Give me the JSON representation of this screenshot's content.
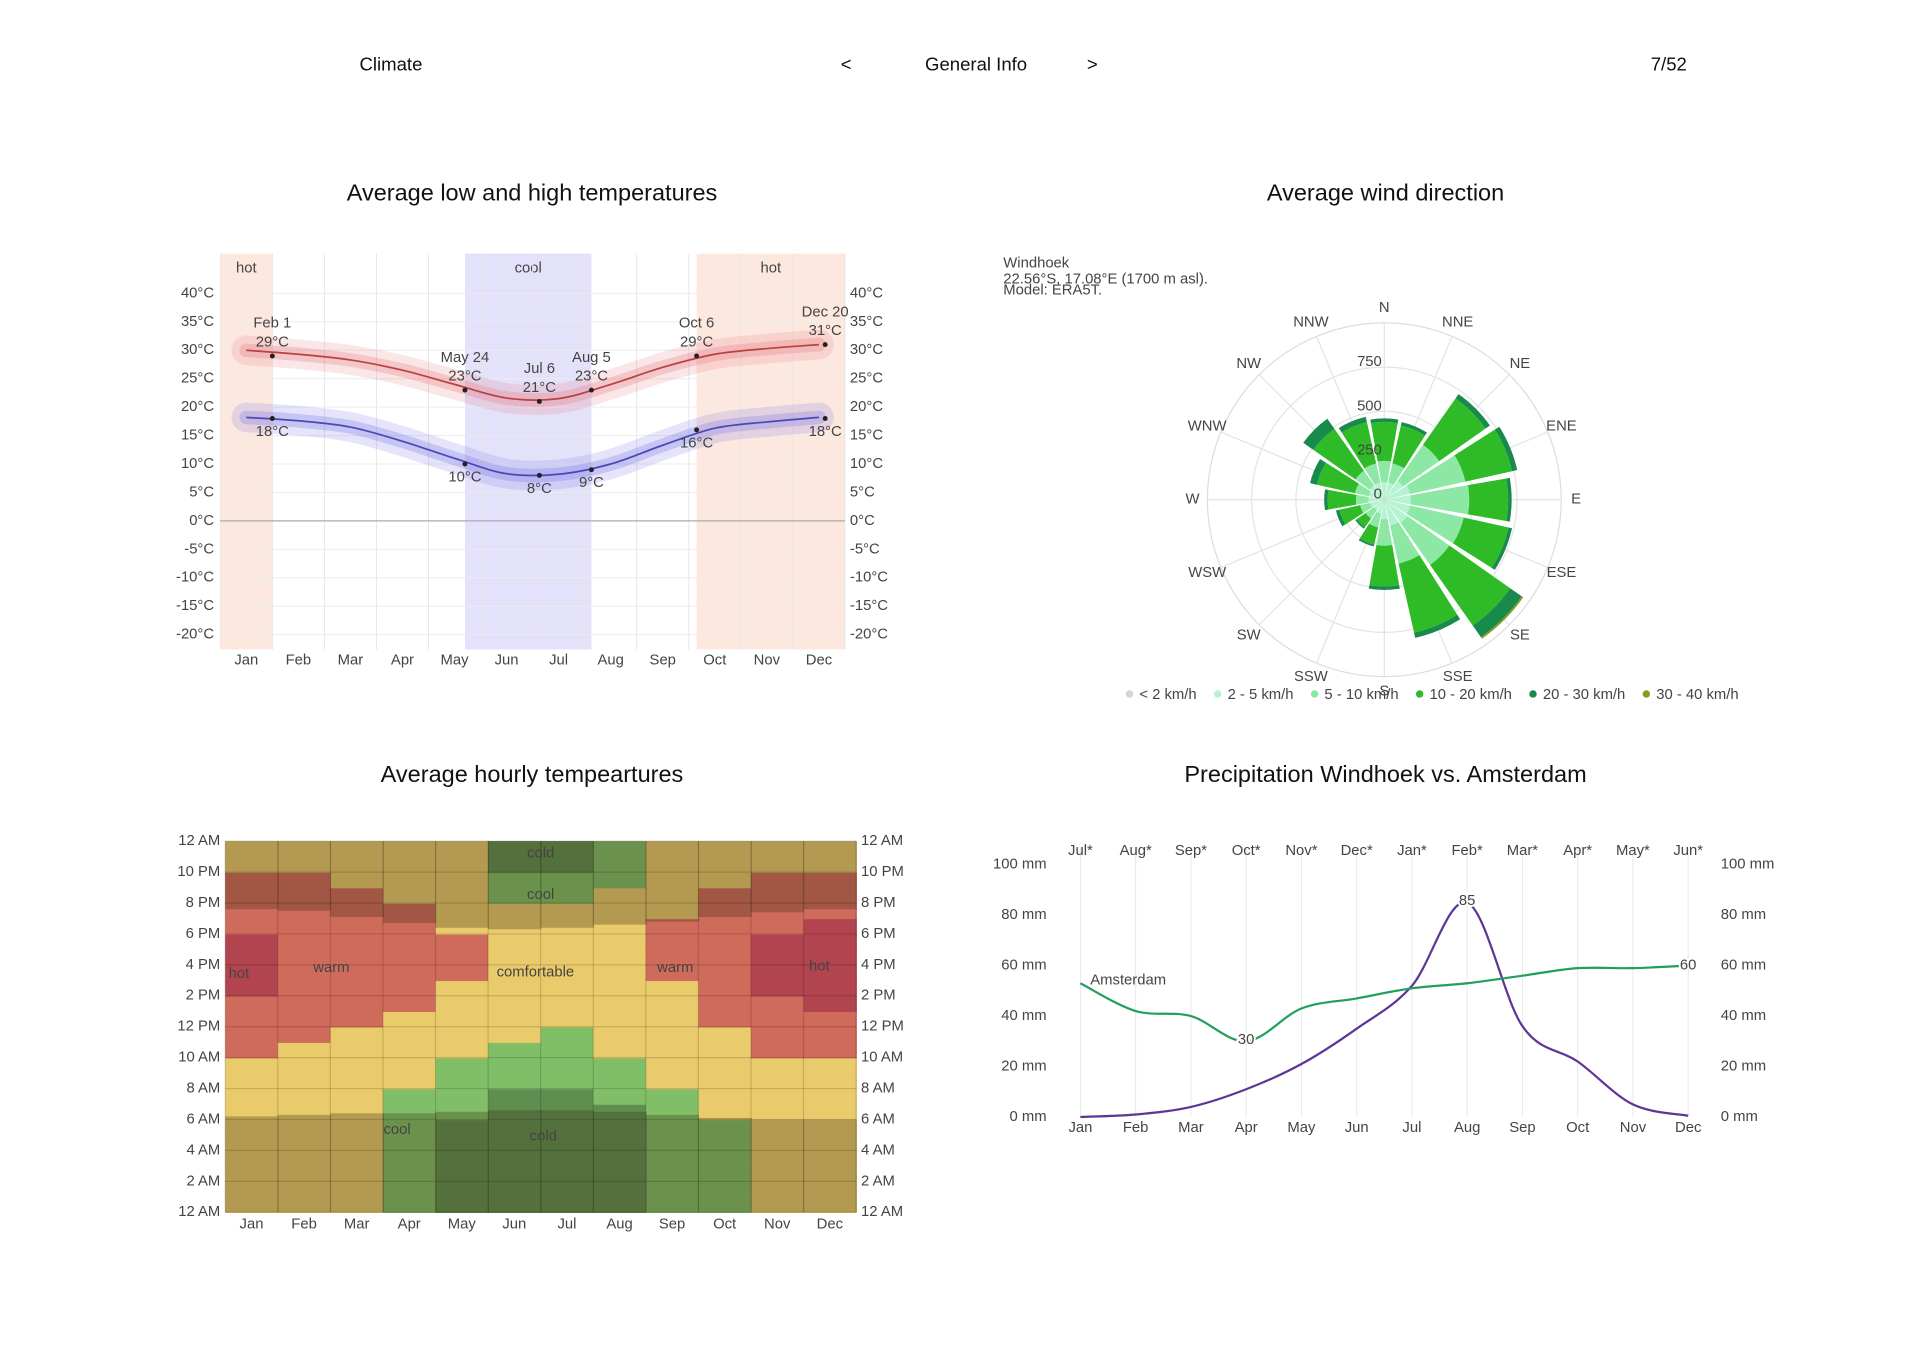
{
  "header": {
    "section": "Climate",
    "prev": "<",
    "page_title": "General Info",
    "next": ">",
    "page_number": "7/52"
  },
  "chart_data": [
    {
      "type": "line",
      "title": "Average low and high temperatures",
      "categories": [
        "Jan",
        "Feb",
        "Mar",
        "Apr",
        "May",
        "Jun",
        "Jul",
        "Aug",
        "Sep",
        "Oct",
        "Nov",
        "Dec"
      ],
      "xlim": [
        0,
        12
      ],
      "ylim": [
        -22.6,
        47
      ],
      "yticks": [
        {
          "value": 40,
          "label": "40°C"
        },
        {
          "value": 35,
          "label": "35°C"
        },
        {
          "value": 30,
          "label": "30°C"
        },
        {
          "value": 25,
          "label": "25°C"
        },
        {
          "value": 20,
          "label": "20°C"
        },
        {
          "value": 15,
          "label": "15°C"
        },
        {
          "value": 10,
          "label": "10°C"
        },
        {
          "value": 5,
          "label": "5°C"
        },
        {
          "value": 0,
          "label": "0°C"
        },
        {
          "value": -5,
          "label": "-5°C"
        },
        {
          "value": -10,
          "label": "-10°C"
        },
        {
          "value": -15,
          "label": "-15°C"
        },
        {
          "value": -20,
          "label": "-20°C"
        }
      ],
      "grid": true,
      "mirror_y": true,
      "seasons": [
        {
          "label": "hot",
          "from": 0,
          "to": 1.0,
          "color": "#fde8df"
        },
        {
          "label": "cool",
          "from": 4.7,
          "to": 7.13,
          "color": "#e4e2fb"
        },
        {
          "label": "hot",
          "from": 9.15,
          "to": 12,
          "color": "#fde8df"
        }
      ],
      "series": [
        {
          "color": "#b8423f",
          "band_color": "#e77b86",
          "values": [
            30,
            29.3,
            28.3,
            26.5,
            24,
            21.6,
            21.5,
            24,
            27,
            29.3,
            30.3,
            31
          ]
        },
        {
          "color": "#4b48b6",
          "band_color": "#7e7ae6",
          "values": [
            18.2,
            17.6,
            16.5,
            14,
            11,
            8.3,
            8.2,
            10,
            13.3,
            16.3,
            17.4,
            18.2
          ]
        }
      ],
      "annotations": [
        {
          "date": "Feb 1",
          "x": 1.0,
          "high": 29,
          "high_label": "29°C",
          "low": 18,
          "low_label": "18°C"
        },
        {
          "date": "May 24",
          "x": 4.7,
          "high": 23,
          "high_label": "23°C",
          "low": 10,
          "low_label": "10°C"
        },
        {
          "date": "Jul 6",
          "x": 6.13,
          "high": 21,
          "high_label": "21°C",
          "low": 8,
          "low_label": "8°C"
        },
        {
          "date": "Aug 5",
          "x": 7.13,
          "high": 23,
          "high_label": "23°C",
          "low": 9,
          "low_label": "9°C"
        },
        {
          "date": "Oct 6",
          "x": 9.15,
          "high": 29,
          "high_label": "29°C",
          "low": 16,
          "low_label": "16°C"
        },
        {
          "date": "Dec 20",
          "x": 11.62,
          "high": 31,
          "high_label": "31°C",
          "low": 18,
          "low_label": "18°C"
        }
      ]
    },
    {
      "type": "windrose",
      "title": "Average wind direction",
      "subtitle": "Windhoek",
      "location": "22.56°S, 17.08°E (1700 m asl).",
      "model": "Model: ERA5T.",
      "directions": [
        "N",
        "NNE",
        "NE",
        "ENE",
        "E",
        "ESE",
        "SE",
        "SSE",
        "S",
        "SSW",
        "SW",
        "WSW",
        "W",
        "WNW",
        "NW",
        "NNW"
      ],
      "rlim": [
        0,
        1000
      ],
      "rticks": [
        0,
        250,
        500,
        750
      ],
      "series": [
        {
          "name": "< 2 km/h",
          "color": "#d4d4d4",
          "values": [
            10,
            10,
            10,
            10,
            10,
            10,
            10,
            10,
            10,
            10,
            10,
            10,
            10,
            10,
            10,
            10
          ]
        },
        {
          "name": "2 - 5 km/h",
          "color": "#b6f3d2",
          "values": [
            90,
            90,
            120,
            140,
            140,
            140,
            150,
            140,
            100,
            70,
            60,
            70,
            80,
            80,
            90,
            90
          ]
        },
        {
          "name": "5 - 10 km/h",
          "color": "#8ce8a4",
          "values": [
            120,
            110,
            250,
            320,
            330,
            310,
            290,
            220,
            150,
            80,
            60,
            60,
            70,
            80,
            100,
            110
          ]
        },
        {
          "name": "10 - 20 km/h",
          "color": "#2fbb27",
          "values": [
            220,
            220,
            320,
            270,
            220,
            260,
            420,
            400,
            230,
            100,
            60,
            120,
            160,
            220,
            290,
            240
          ]
        },
        {
          "name": "20 - 30 km/h",
          "color": "#178a4c",
          "values": [
            20,
            20,
            30,
            30,
            20,
            20,
            80,
            30,
            20,
            10,
            10,
            20,
            20,
            40,
            70,
            30
          ]
        },
        {
          "name": "30 - 40 km/h",
          "color": "#8a9c1c",
          "values": [
            0,
            0,
            0,
            0,
            0,
            0,
            10,
            0,
            0,
            0,
            0,
            0,
            0,
            0,
            0,
            0
          ]
        }
      ]
    },
    {
      "type": "heatmap",
      "title": "Average hourly tempeartures",
      "categories": [
        "Jan",
        "Feb",
        "Mar",
        "Apr",
        "May",
        "Jun",
        "Jul",
        "Aug",
        "Sep",
        "Oct",
        "Nov",
        "Dec"
      ],
      "ylim": [
        0,
        24
      ],
      "yticks": [
        {
          "value": 24,
          "label": "12 AM"
        },
        {
          "value": 22,
          "label": "10 PM"
        },
        {
          "value": 20,
          "label": "8 PM"
        },
        {
          "value": 18,
          "label": "6 PM"
        },
        {
          "value": 16,
          "label": "4 PM"
        },
        {
          "value": 14,
          "label": "2 PM"
        },
        {
          "value": 12,
          "label": "12 PM"
        },
        {
          "value": 10,
          "label": "10 AM"
        },
        {
          "value": 8,
          "label": "8 AM"
        },
        {
          "value": 6,
          "label": "6 AM"
        },
        {
          "value": 4,
          "label": "4 AM"
        },
        {
          "value": 2,
          "label": "2 AM"
        },
        {
          "value": 0,
          "label": "12 AM"
        }
      ],
      "mirror_y": true,
      "color_scale": [
        {
          "max": 13,
          "color": "#5f8f50"
        },
        {
          "max": 18,
          "color": "#80bf68"
        },
        {
          "max": 24,
          "color": "#e9cb6c"
        },
        {
          "max": 29,
          "color": "#cf6b5b"
        },
        {
          "max": 40,
          "color": "#b2444f"
        }
      ],
      "values": [
        [
          20,
          19.5,
          19,
          18.7,
          18.5,
          18.3,
          18.4,
          19.5,
          21,
          23,
          24.5,
          26,
          27.5,
          28.6,
          29.3,
          29.8,
          29.9,
          29.5,
          28.5,
          27,
          25.5,
          24.2,
          22.5,
          21
        ],
        [
          19.5,
          19,
          18.6,
          18.3,
          18.1,
          18,
          18,
          19,
          20.5,
          22,
          23.5,
          25,
          26.5,
          27.5,
          28.3,
          28.7,
          28.8,
          28.5,
          27.8,
          26.8,
          25.5,
          24.3,
          22.8,
          21
        ],
        [
          18.8,
          18.4,
          18.1,
          18,
          18,
          18,
          18.1,
          18.5,
          19.8,
          21.2,
          22.5,
          23.6,
          24.8,
          26,
          27,
          27.6,
          27.8,
          27.4,
          26.6,
          25.4,
          24.2,
          23.2,
          21.5,
          20
        ],
        [
          17,
          16.5,
          16,
          15.6,
          15.3,
          15,
          15.1,
          16.8,
          18.5,
          20,
          21.5,
          22.8,
          23.8,
          24.8,
          25.6,
          26.1,
          26.2,
          25.8,
          25,
          24.2,
          23.5,
          21.5,
          19.5,
          18.2
        ],
        [
          12.8,
          12.2,
          11.6,
          11.1,
          10.7,
          10.4,
          13.2,
          14.5,
          16.5,
          17.8,
          19.5,
          21,
          22.3,
          23.2,
          23.8,
          24.2,
          24.3,
          24.1,
          23.5,
          22.3,
          21,
          20,
          19,
          18.2
        ],
        [
          12,
          11.3,
          10.7,
          10.1,
          9.6,
          9.2,
          9,
          10.5,
          13.5,
          16,
          17.5,
          19,
          20.5,
          21.6,
          22.2,
          22.5,
          22.4,
          21.6,
          20.2,
          18.5,
          17,
          14.5,
          12.8,
          12.4
        ],
        [
          11.8,
          11,
          10.3,
          9.7,
          9.2,
          8.8,
          8.6,
          9.8,
          13.2,
          15.2,
          16.8,
          17.9,
          19.3,
          20.5,
          21.4,
          21.8,
          21.7,
          21,
          19.8,
          18.3,
          16.8,
          14.2,
          12.7,
          12.2
        ],
        [
          12.7,
          12,
          11.3,
          10.7,
          10.2,
          9.8,
          9.7,
          13.3,
          15.5,
          17.3,
          19.2,
          21,
          22.4,
          23.3,
          23.8,
          23.9,
          23.6,
          22.8,
          21.4,
          19.8,
          18.4,
          17,
          15.5,
          14.2
        ],
        [
          16.2,
          15.6,
          15,
          14.5,
          14.1,
          13.8,
          13.7,
          15.8,
          18.5,
          20.5,
          22,
          23,
          23.6,
          23.9,
          23.95,
          24.4,
          24.6,
          24.5,
          24.1,
          23.5,
          22.4,
          20.8,
          19.2,
          18.1
        ],
        [
          17.6,
          17.2,
          16.8,
          16.4,
          16.1,
          15.9,
          18.3,
          20,
          21.6,
          22.8,
          23.5,
          23.9,
          24.6,
          25.8,
          26.8,
          27.4,
          27.6,
          27.3,
          26.5,
          25.3,
          24.2,
          23.4,
          21.5,
          19.2
        ],
        [
          19.5,
          19,
          18.6,
          18.3,
          18.1,
          18,
          18.2,
          19.5,
          21.2,
          23,
          24.6,
          26.2,
          27.8,
          28.8,
          29.2,
          29.6,
          29.7,
          29.3,
          28.4,
          27,
          25.6,
          24.3,
          22.6,
          21
        ],
        [
          20.3,
          19.8,
          19.4,
          19.1,
          18.9,
          18.8,
          19,
          20.2,
          21.8,
          23.5,
          25,
          26.8,
          28.4,
          29.2,
          29.8,
          30.3,
          30.4,
          30.1,
          29.3,
          27.8,
          26.2,
          24.6,
          23,
          21.6
        ]
      ],
      "sunrise": [
        6.2,
        6.3,
        6.4,
        6.4,
        6.5,
        6.6,
        6.6,
        6.5,
        6.3,
        6.1,
        6.0,
        6.0
      ],
      "sunset": [
        19.6,
        19.5,
        19.1,
        18.7,
        18.4,
        18.3,
        18.4,
        18.6,
        18.8,
        19.1,
        19.4,
        19.6
      ],
      "labels": [
        {
          "text": "cold",
          "x": 6.0,
          "hour": 23.2
        },
        {
          "text": "cool",
          "x": 6.0,
          "hour": 20.5
        },
        {
          "text": "hot",
          "x": 0.26,
          "hour": 15.4
        },
        {
          "text": "warm",
          "x": 2.02,
          "hour": 15.8
        },
        {
          "text": "comfortable",
          "x": 5.9,
          "hour": 15.5
        },
        {
          "text": "warm",
          "x": 8.56,
          "hour": 15.8
        },
        {
          "text": "hot",
          "x": 11.3,
          "hour": 15.9
        },
        {
          "text": "cool",
          "x": 3.27,
          "hour": 5.3
        },
        {
          "text": "cold",
          "x": 6.05,
          "hour": 4.9
        }
      ]
    },
    {
      "type": "line",
      "title": "Precipitation Windhoek vs. Amsterdam",
      "categories": [
        "Jan",
        "Feb",
        "Mar",
        "Apr",
        "May",
        "Jun",
        "Jul",
        "Aug",
        "Sep",
        "Oct",
        "Nov",
        "Dec"
      ],
      "top_categories": [
        "Jul*",
        "Aug*",
        "Sep*",
        "Oct*",
        "Nov*",
        "Dec*",
        "Jan*",
        "Feb*",
        "Mar*",
        "Apr*",
        "May*",
        "Jun*"
      ],
      "ylim": [
        0,
        100
      ],
      "yticks": [
        {
          "value": 100,
          "label": "100 mm"
        },
        {
          "value": 80,
          "label": "80 mm"
        },
        {
          "value": 60,
          "label": "60 mm"
        },
        {
          "value": 40,
          "label": "40 mm"
        },
        {
          "value": 20,
          "label": "20 mm"
        },
        {
          "value": 0,
          "label": "0 mm"
        }
      ],
      "grid": "x",
      "mirror_y": true,
      "series": [
        {
          "color": "#5e3596",
          "values": [
            0,
            1,
            4,
            11,
            21,
            35,
            52,
            85,
            36,
            22,
            5,
            0.5
          ],
          "value_labels": [
            null,
            null,
            null,
            null,
            null,
            null,
            null,
            "85",
            null,
            null,
            null,
            null
          ]
        },
        {
          "name": "Amsterdam",
          "color": "#20a05c",
          "values": [
            53,
            42,
            40,
            30,
            43,
            47,
            51,
            53,
            56,
            59,
            59,
            60
          ],
          "value_labels": [
            null,
            null,
            null,
            "30",
            null,
            null,
            null,
            null,
            null,
            null,
            null,
            "60"
          ]
        }
      ]
    }
  ]
}
